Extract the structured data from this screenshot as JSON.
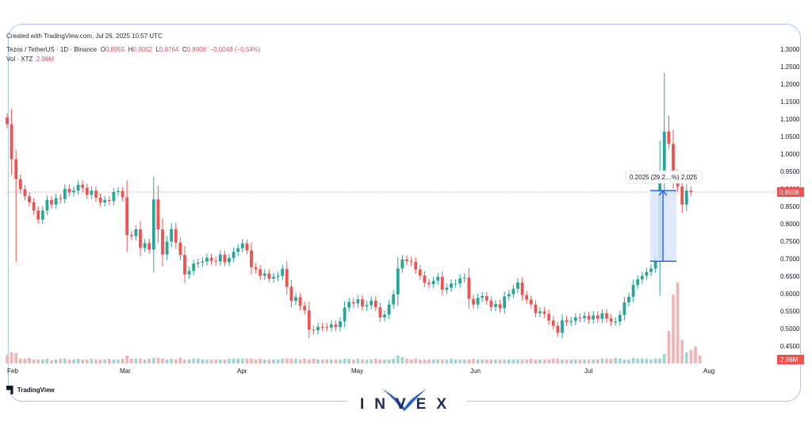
{
  "header": {
    "created": "Created with TradingView.com, Jul 26, 2025 10:57 UTC",
    "symbol": "Tezos / TetherUS · 1D · Binance",
    "o_key": "O",
    "o": "0.8955",
    "h_key": "H",
    "h": "0.9052",
    "l_key": "L",
    "l": "0.8764",
    "c_key": "C",
    "c": "0.8908",
    "change": "−0.0048 (−0.54%)",
    "vol_label": "Vol · XTZ",
    "vol_value": "2.96M"
  },
  "footer": {
    "tv_logo_text": "TradingView",
    "brand": "INVEX"
  },
  "colors": {
    "up": "#26a69a",
    "down": "#ef5350",
    "vol_up": "#9fd4cf",
    "vol_down": "#f6b2b2",
    "measure": "#2962ff",
    "measure_fill": "#dbe6fb"
  },
  "chart_data": {
    "type": "candlestick",
    "ylim": [
      0.4,
      1.3
    ],
    "y_ticks": [
      "1.3000",
      "1.2500",
      "1.2000",
      "1.1500",
      "1.1000",
      "1.0500",
      "1.0000",
      "0.9500",
      "0.9000",
      "0.8500",
      "0.8000",
      "0.7500",
      "0.7000",
      "0.6500",
      "0.6000",
      "0.5500",
      "0.5000",
      "0.4500"
    ],
    "x_ticks": [
      "Feb",
      "Mar",
      "Apr",
      "May",
      "Jun",
      "Jul",
      "Aug"
    ],
    "last_price_label": "0.8908",
    "volume_label": "2.96M",
    "measure_label": "0.2025 (29.2…%) 2,025",
    "measure_range": [
      0.6926,
      0.8951
    ],
    "closes": [
      1.085,
      0.985,
      0.928,
      0.899,
      0.879,
      0.862,
      0.838,
      0.812,
      0.838,
      0.868,
      0.855,
      0.873,
      0.871,
      0.9,
      0.89,
      0.895,
      0.912,
      0.903,
      0.883,
      0.895,
      0.875,
      0.861,
      0.868,
      0.865,
      0.891,
      0.894,
      0.876,
      0.768,
      0.765,
      0.784,
      0.731,
      0.745,
      0.726,
      0.87,
      0.784,
      0.712,
      0.749,
      0.785,
      0.746,
      0.711,
      0.655,
      0.665,
      0.686,
      0.689,
      0.692,
      0.703,
      0.694,
      0.692,
      0.712,
      0.69,
      0.702,
      0.72,
      0.73,
      0.744,
      0.724,
      0.676,
      0.67,
      0.651,
      0.658,
      0.643,
      0.648,
      0.651,
      0.671,
      0.62,
      0.579,
      0.59,
      0.565,
      0.552,
      0.497,
      0.495,
      0.505,
      0.504,
      0.503,
      0.512,
      0.504,
      0.521,
      0.56,
      0.576,
      0.572,
      0.584,
      0.563,
      0.567,
      0.58,
      0.561,
      0.532,
      0.54,
      0.569,
      0.598,
      0.672,
      0.698,
      0.693,
      0.691,
      0.669,
      0.652,
      0.631,
      0.627,
      0.637,
      0.648,
      0.611,
      0.617,
      0.629,
      0.629,
      0.644,
      0.646,
      0.585,
      0.569,
      0.588,
      0.593,
      0.58,
      0.562,
      0.57,
      0.558,
      0.592,
      0.599,
      0.614,
      0.632,
      0.596,
      0.583,
      0.569,
      0.544,
      0.549,
      0.542,
      0.523,
      0.508,
      0.488,
      0.524,
      0.519,
      0.522,
      0.532,
      0.53,
      0.536,
      0.526,
      0.538,
      0.528,
      0.544,
      0.529,
      0.52,
      0.52,
      0.539,
      0.575,
      0.591,
      0.625,
      0.641,
      0.651,
      0.662,
      0.672,
      0.699,
      0.933,
      1.064,
      1.029,
      0.94,
      0.907,
      0.855,
      0.895,
      0.891
    ],
    "volumes": [
      0.11,
      0.14,
      0.13,
      0.06,
      0.06,
      0.07,
      0.05,
      0.05,
      0.05,
      0.06,
      0.04,
      0.05,
      0.06,
      0.06,
      0.05,
      0.05,
      0.06,
      0.05,
      0.05,
      0.06,
      0.05,
      0.05,
      0.05,
      0.06,
      0.05,
      0.05,
      0.06,
      0.1,
      0.06,
      0.06,
      0.06,
      0.05,
      0.06,
      0.07,
      0.07,
      0.06,
      0.05,
      0.06,
      0.05,
      0.07,
      0.05,
      0.05,
      0.06,
      0.06,
      0.05,
      0.05,
      0.05,
      0.05,
      0.05,
      0.05,
      0.06,
      0.06,
      0.06,
      0.06,
      0.06,
      0.06,
      0.05,
      0.06,
      0.05,
      0.05,
      0.05,
      0.05,
      0.06,
      0.06,
      0.06,
      0.06,
      0.05,
      0.06,
      0.05,
      0.06,
      0.05,
      0.05,
      0.05,
      0.05,
      0.05,
      0.05,
      0.06,
      0.06,
      0.05,
      0.06,
      0.05,
      0.05,
      0.05,
      0.06,
      0.05,
      0.05,
      0.05,
      0.06,
      0.1,
      0.08,
      0.06,
      0.05,
      0.06,
      0.05,
      0.05,
      0.05,
      0.05,
      0.05,
      0.05,
      0.05,
      0.06,
      0.05,
      0.05,
      0.05,
      0.05,
      0.06,
      0.05,
      0.05,
      0.05,
      0.05,
      0.05,
      0.05,
      0.05,
      0.05,
      0.05,
      0.05,
      0.05,
      0.05,
      0.06,
      0.05,
      0.05,
      0.05,
      0.05,
      0.06,
      0.06,
      0.05,
      0.05,
      0.05,
      0.05,
      0.05,
      0.05,
      0.05,
      0.05,
      0.05,
      0.06,
      0.06,
      0.06,
      0.07,
      0.06,
      0.05,
      0.05,
      0.07,
      0.06,
      0.06,
      0.06,
      0.05,
      0.06,
      0.06,
      0.12,
      0.4,
      0.85,
      1.0,
      0.29,
      0.14,
      0.17,
      0.21,
      0.1
    ]
  }
}
